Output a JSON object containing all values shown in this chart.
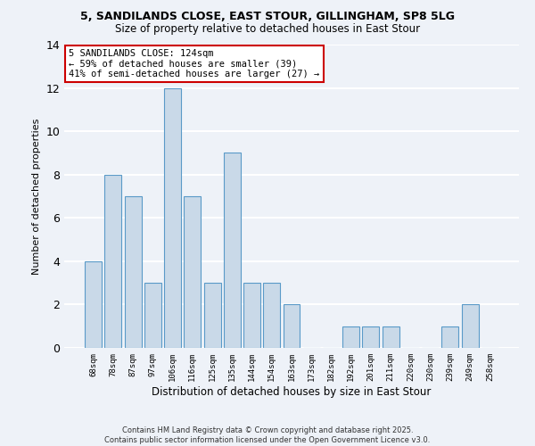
{
  "title_line1": "5, SANDILANDS CLOSE, EAST STOUR, GILLINGHAM, SP8 5LG",
  "title_line2": "Size of property relative to detached houses in East Stour",
  "xlabel": "Distribution of detached houses by size in East Stour",
  "ylabel": "Number of detached properties",
  "categories": [
    "68sqm",
    "78sqm",
    "87sqm",
    "97sqm",
    "106sqm",
    "116sqm",
    "125sqm",
    "135sqm",
    "144sqm",
    "154sqm",
    "163sqm",
    "173sqm",
    "182sqm",
    "192sqm",
    "201sqm",
    "211sqm",
    "220sqm",
    "230sqm",
    "239sqm",
    "249sqm",
    "258sqm"
  ],
  "values": [
    4,
    8,
    7,
    3,
    12,
    7,
    3,
    9,
    3,
    3,
    2,
    0,
    0,
    1,
    1,
    1,
    0,
    0,
    1,
    2,
    0
  ],
  "bar_color": "#c9d9e8",
  "bar_edge_color": "#5a9ac8",
  "annotation_line1": "5 SANDILANDS CLOSE: 124sqm",
  "annotation_line2": "← 59% of detached houses are smaller (39)",
  "annotation_line3": "41% of semi-detached houses are larger (27) →",
  "annotation_box_color": "#ffffff",
  "annotation_box_edge": "#cc0000",
  "ylim": [
    0,
    14
  ],
  "yticks": [
    0,
    2,
    4,
    6,
    8,
    10,
    12,
    14
  ],
  "background_color": "#eef2f8",
  "grid_color": "#ffffff",
  "footer_line1": "Contains HM Land Registry data © Crown copyright and database right 2025.",
  "footer_line2": "Contains public sector information licensed under the Open Government Licence v3.0."
}
